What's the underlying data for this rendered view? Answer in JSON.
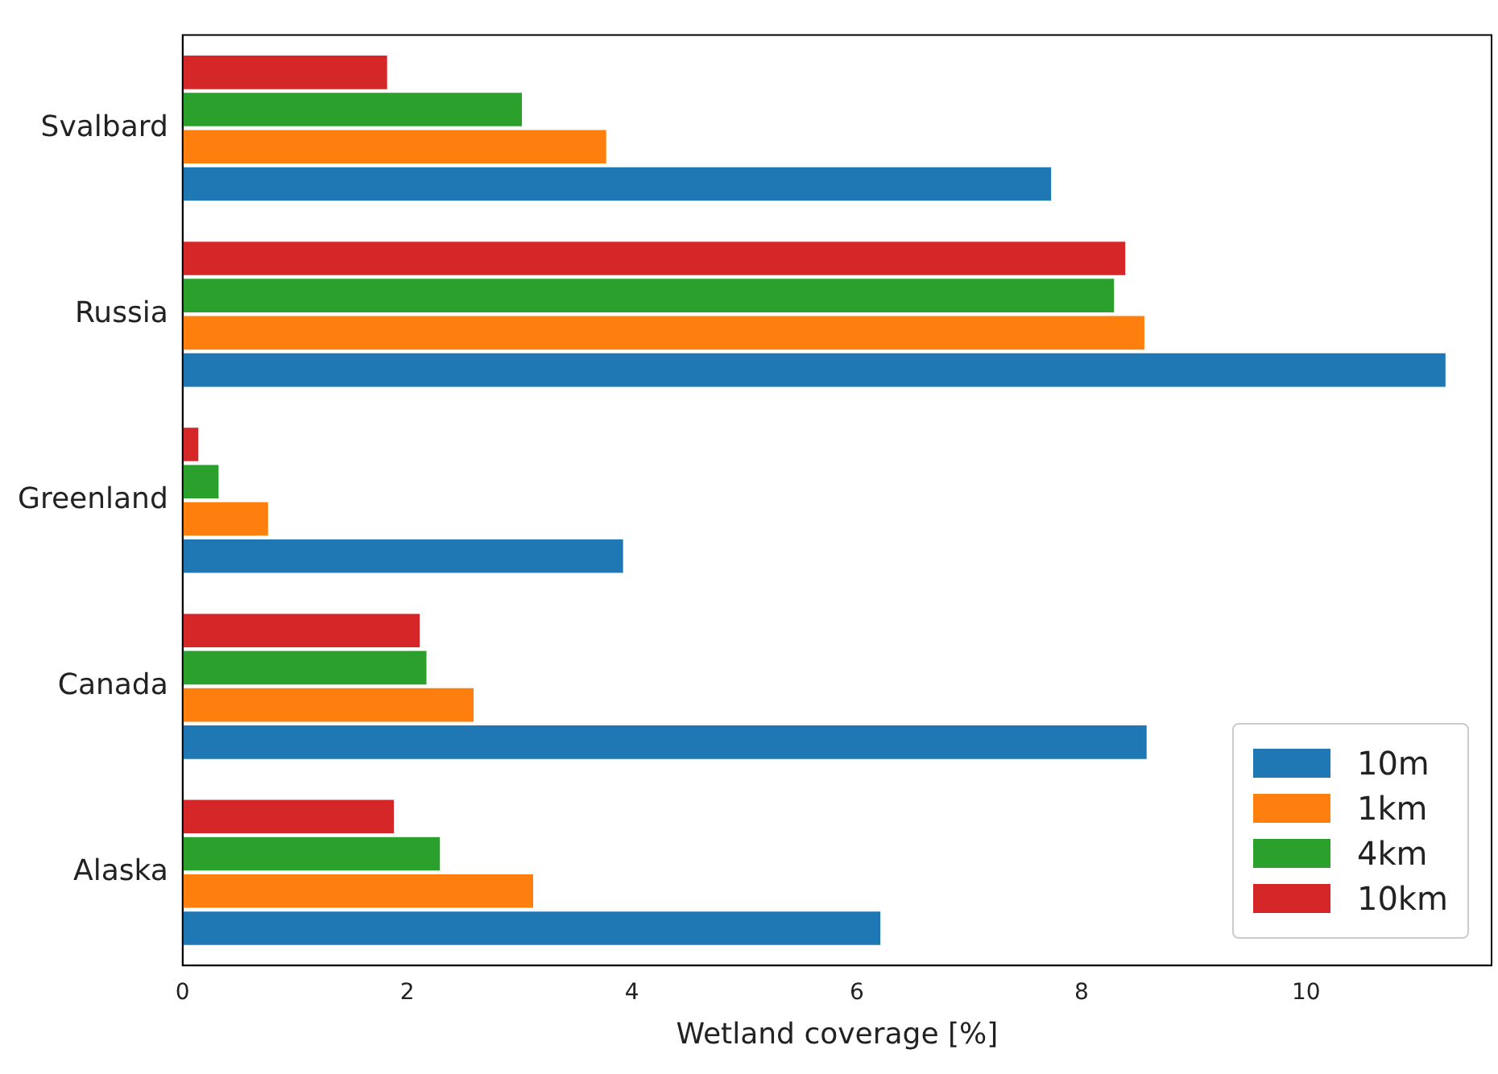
{
  "chart_data": {
    "type": "bar",
    "orientation": "horizontal",
    "xlabel": "Wetland coverage [%]",
    "categories": [
      "Svalbard",
      "Russia",
      "Greenland",
      "Canada",
      "Alaska"
    ],
    "series": [
      {
        "name": "10m",
        "color": "#1f77b4",
        "values": [
          7.73,
          11.24,
          3.92,
          8.58,
          6.21
        ]
      },
      {
        "name": "1km",
        "color": "#ff7f0e",
        "values": [
          3.77,
          8.56,
          0.76,
          2.59,
          3.12
        ]
      },
      {
        "name": "4km",
        "color": "#2ca02c",
        "values": [
          3.02,
          8.29,
          0.32,
          2.17,
          2.29
        ]
      },
      {
        "name": "10km",
        "color": "#d62728",
        "values": [
          1.82,
          8.39,
          0.14,
          2.11,
          1.88
        ]
      }
    ],
    "xlim": [
      0,
      11.65
    ],
    "xticks": [
      0,
      2,
      4,
      6,
      8,
      10
    ],
    "grid": false,
    "legend": "bottom right"
  }
}
